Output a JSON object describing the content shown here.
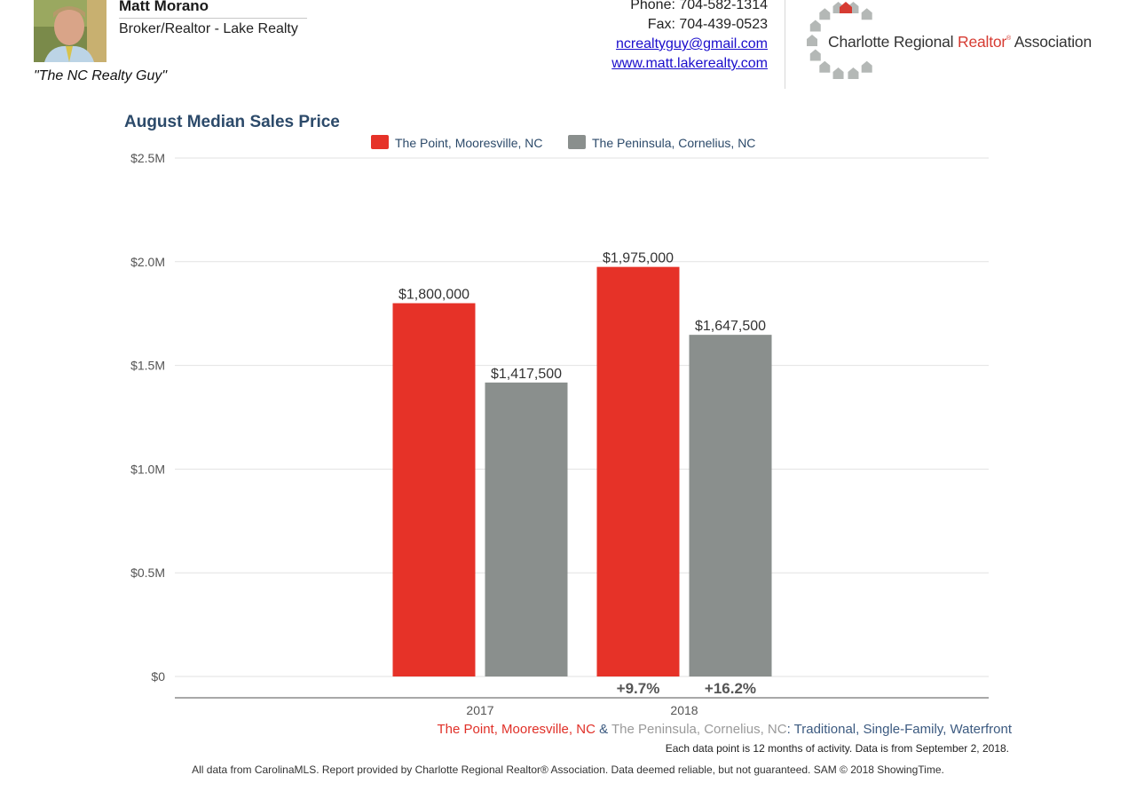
{
  "header": {
    "agent_name": "Matt Morano",
    "agent_title": "Broker/Realtor - Lake Realty",
    "tagline": "\"The NC Realty Guy\"",
    "phone": "Phone: 704-582-1314",
    "fax": "Fax: 704-439-0523",
    "email": "ncrealtyguy@gmail.com",
    "website": "www.matt.lakerealty.com",
    "logo": {
      "part1": "Charlotte Regional ",
      "part2": "Realtor",
      "reg": "®",
      "part3": " Association"
    }
  },
  "chart_data": {
    "type": "bar",
    "title": "August Median Sales Price",
    "categories": [
      "2017",
      "2018"
    ],
    "series": [
      {
        "name": "The Point, Mooresville, NC",
        "color": "#e63228",
        "values": [
          1800000,
          1975000
        ],
        "value_labels": [
          "$1,800,000",
          "$1,975,000"
        ],
        "change_labels": [
          "",
          "+9.7%"
        ]
      },
      {
        "name": "The Peninsula, Cornelius, NC",
        "color": "#8a8f8d",
        "values": [
          1417500,
          1647500
        ],
        "value_labels": [
          "$1,417,500",
          "$1,647,500"
        ],
        "change_labels": [
          "",
          "+16.2%"
        ]
      }
    ],
    "ylim": [
      0,
      2500000
    ],
    "y_ticks": [
      0,
      500000,
      1000000,
      1500000,
      2000000,
      2500000
    ],
    "y_tick_labels": [
      "$0",
      "$0.5M",
      "$1.0M",
      "$1.5M",
      "$2.0M",
      "$2.5M"
    ],
    "legend_position": "top-center",
    "grid": true
  },
  "footer": {
    "subtitle_point": "The Point, Mooresville, NC",
    "subtitle_amp": " & ",
    "subtitle_peninsula": "The Peninsula, Cornelius, NC",
    "subtitle_type": ": Traditional, Single-Family, Waterfront",
    "data_note": "Each data point is 12 months of activity. Data is from September 2, 2018.",
    "disclaimer": "All data from CarolinaMLS. Report provided by Charlotte Regional Realtor® Association. Data deemed reliable, but not guaranteed. SAM © 2018 ShowingTime."
  },
  "colors": {
    "title": "#2c4a6a",
    "link": "#1a0dcc",
    "grid": "#e2e2e2",
    "axis_text": "#555555"
  }
}
